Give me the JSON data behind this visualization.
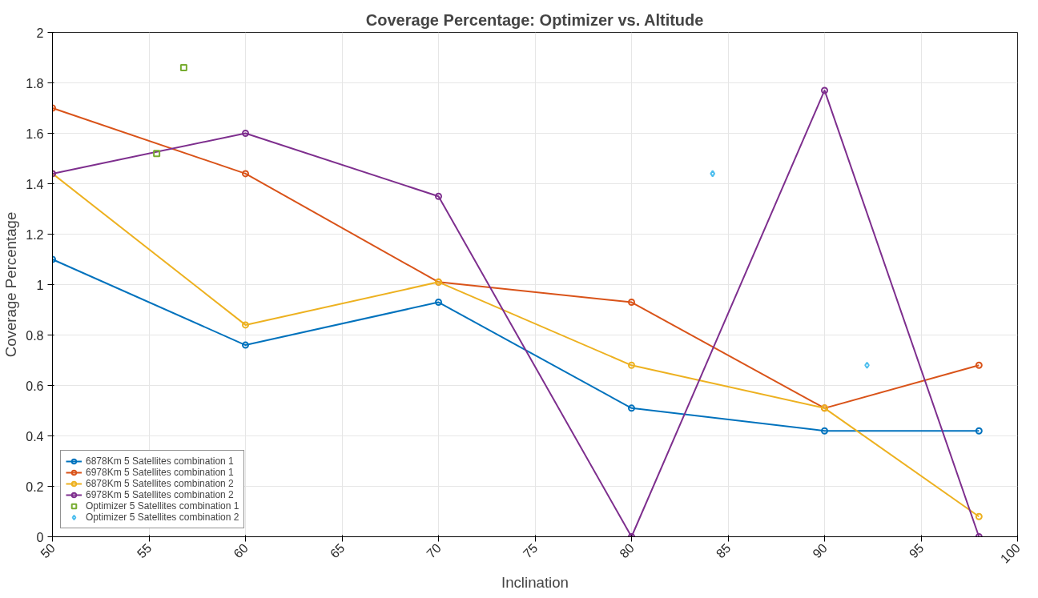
{
  "chart_data": {
    "type": "line",
    "title": "Coverage Percentage: Optimizer vs. Altitude",
    "xlabel": "Inclination",
    "ylabel": "Coverage Percentage",
    "xlim": [
      50,
      100
    ],
    "xticks": [
      50,
      55,
      60,
      65,
      70,
      75,
      80,
      85,
      90,
      95,
      100
    ],
    "ylim": [
      0,
      2
    ],
    "yticks": [
      0,
      0.2,
      0.4,
      0.6,
      0.8,
      1,
      1.2,
      1.4,
      1.6,
      1.8,
      2
    ],
    "grid": true,
    "legend": "bottom left",
    "series": [
      {
        "name": "6878Km 5 Satellites combination 1",
        "marker": "circle",
        "color": "#0072bd",
        "x": [
          50,
          60,
          70,
          80,
          90,
          98
        ],
        "values": [
          1.1,
          0.76,
          0.93,
          0.51,
          0.42,
          0.42
        ]
      },
      {
        "name": "6978Km 5 Satellites combination 1",
        "marker": "circle",
        "color": "#d95319",
        "x": [
          50,
          60,
          70,
          80,
          90,
          98
        ],
        "values": [
          1.7,
          1.44,
          1.01,
          0.93,
          0.51,
          0.68
        ]
      },
      {
        "name": "6878Km 5 Satellites combination 2",
        "marker": "circle",
        "color": "#edb120",
        "x": [
          50,
          60,
          70,
          80,
          90,
          98
        ],
        "values": [
          1.44,
          0.84,
          1.01,
          0.68,
          0.51,
          0.08
        ]
      },
      {
        "name": "6978Km 5 Satellites combination 2",
        "marker": "circle",
        "color": "#7e2f8e",
        "x": [
          50,
          60,
          70,
          80,
          90,
          98
        ],
        "values": [
          1.44,
          1.6,
          1.35,
          0,
          1.77,
          0
        ]
      },
      {
        "name": "Optimizer 5 Satellites combination 1",
        "type": "scatter",
        "marker": "square",
        "color": "#77ac30",
        "x": [
          55.4,
          56.8
        ],
        "values": [
          1.52,
          1.86
        ]
      },
      {
        "name": "Optimizer 5 Satellites combination 2",
        "type": "scatter",
        "marker": "diamond",
        "color": "#4dbeee",
        "x": [
          84.2,
          92.2
        ],
        "values": [
          1.44,
          0.68
        ]
      }
    ]
  }
}
